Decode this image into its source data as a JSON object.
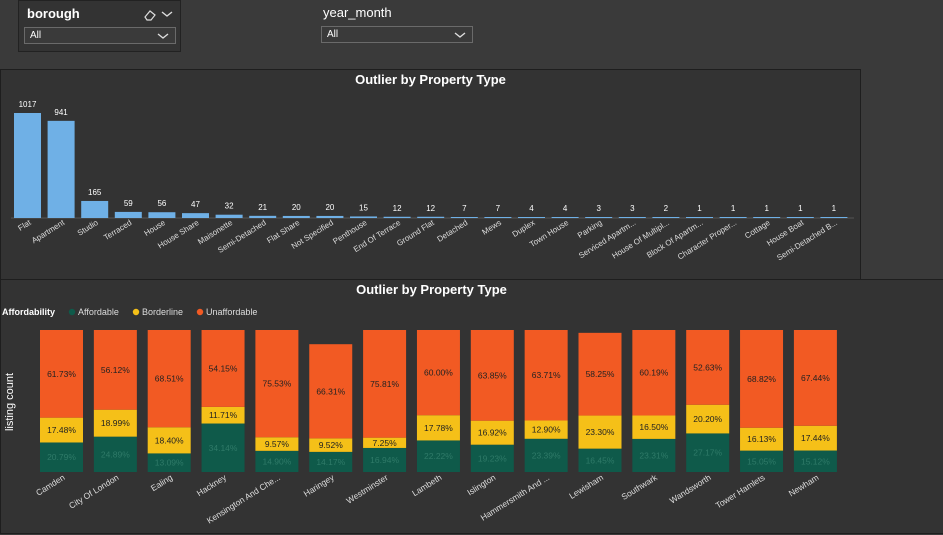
{
  "slicers": {
    "borough": {
      "title": "borough",
      "value": "All"
    },
    "year_month": {
      "title": "year_month",
      "value": "All"
    }
  },
  "colors": {
    "bar": "#6fb0e6",
    "affordable": "#0f5a4a",
    "borderline": "#f5c018",
    "unaffordable": "#f25a23"
  },
  "chart_data": [
    {
      "type": "bar",
      "title": "Outlier by Property Type",
      "categories": [
        "Flat",
        "Apartment",
        "Studio",
        "Terraced",
        "House",
        "House Share",
        "Maisonette",
        "Semi-Detached",
        "Flat Share",
        "Not Specified",
        "Penthouse",
        "End Of Terrace",
        "Ground Flat",
        "Detached",
        "Mews",
        "Duplex",
        "Town House",
        "Parking",
        "Serviced Apartm...",
        "House Of Multipl...",
        "Block Of Apartm...",
        "Character Proper...",
        "Cottage",
        "House Boat",
        "Semi-Detached B..."
      ],
      "values": [
        1017,
        941,
        165,
        59,
        56,
        47,
        32,
        21,
        20,
        20,
        15,
        12,
        12,
        7,
        7,
        4,
        4,
        3,
        3,
        2,
        1,
        1,
        1,
        1,
        1
      ]
    },
    {
      "type": "bar",
      "stacked": "100%",
      "title": "Outlier by Property Type",
      "ylabel": "listing count",
      "legend_title": "Affordability",
      "categories": [
        "Camden",
        "City Of London",
        "Ealing",
        "Hackney",
        "Kensington And Che...",
        "Haringey",
        "Westminster",
        "Lambeth",
        "Islington",
        "Hammersmith And ...",
        "Lewisham",
        "Southwark",
        "Wandsworth",
        "Tower Hamlets",
        "Newham"
      ],
      "series": [
        {
          "name": "Affordable",
          "values": [
            20.79,
            24.89,
            13.09,
            34.14,
            14.9,
            14.17,
            16.94,
            22.22,
            19.23,
            23.39,
            16.45,
            23.31,
            27.17,
            15.05,
            15.12
          ],
          "labels": [
            "20.79%",
            "24.89%",
            "13.09%",
            "34.14%",
            "14.90%",
            "14.17%",
            "16.94%",
            "22.22%",
            "19.23%",
            "23.39%",
            "16.45%",
            "23.31%",
            "27.17%",
            "15.05%",
            "15.12%"
          ]
        },
        {
          "name": "Borderline",
          "values": [
            17.48,
            18.99,
            18.4,
            11.71,
            9.57,
            9.52,
            7.25,
            17.78,
            16.92,
            12.9,
            23.3,
            16.5,
            20.2,
            16.13,
            17.44
          ],
          "labels": [
            "17.48%",
            "18.99%",
            "18.40%",
            "11.71%",
            "9.57%",
            "9.52%",
            "7.25%",
            "17.78%",
            "16.92%",
            "12.90%",
            "23.30%",
            "16.50%",
            "20.20%",
            "16.13%",
            "17.44%"
          ]
        },
        {
          "name": "Unaffordable",
          "values": [
            61.73,
            56.12,
            68.51,
            54.15,
            75.53,
            66.31,
            75.81,
            60.0,
            63.85,
            63.71,
            58.25,
            60.19,
            52.63,
            68.82,
            67.44
          ],
          "labels": [
            "61.73%",
            "56.12%",
            "68.51%",
            "54.15%",
            "75.53%",
            "66.31%",
            "75.81%",
            "60.00%",
            "63.85%",
            "63.71%",
            "58.25%",
            "60.19%",
            "52.63%",
            "68.82%",
            "67.44%"
          ]
        }
      ]
    }
  ]
}
